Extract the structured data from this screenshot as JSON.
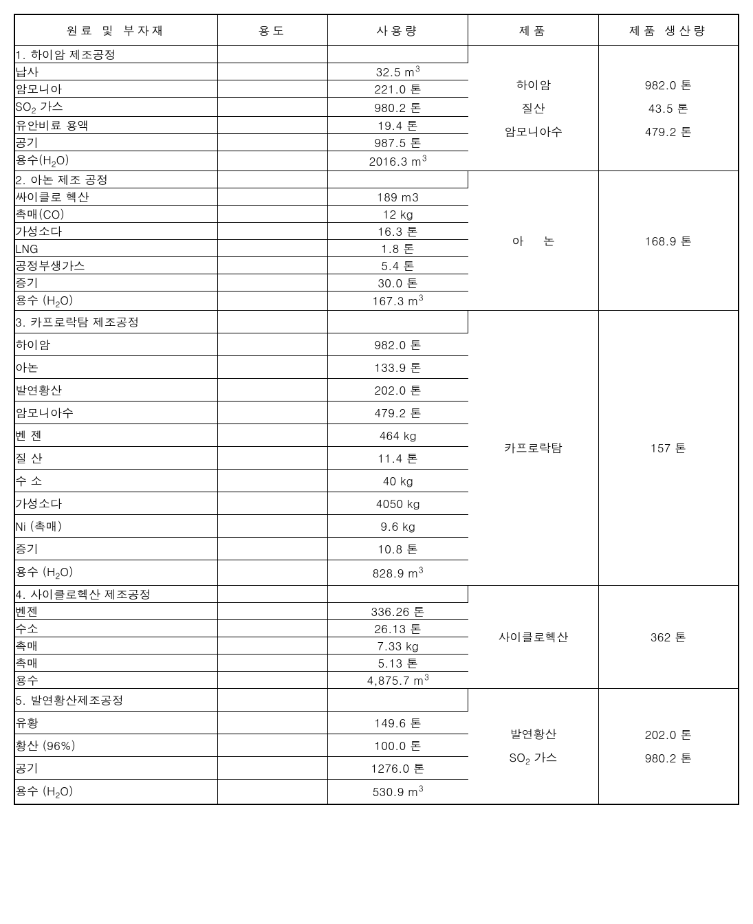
{
  "columns": {
    "material": "원료  및  부자재",
    "use": "용도",
    "amount": "사용량",
    "product": "제품",
    "output": "제품  생산량"
  },
  "sections": [
    {
      "title": "1.  하이암 제조공정",
      "tight": false,
      "rows": [
        {
          "material": "납사",
          "amount_html": "32.5 m<sup>3</sup>"
        },
        {
          "material": "암모니아",
          "amount_html": "221.0 톤"
        },
        {
          "material_html": "SO<sub>2</sub> 가스",
          "amount_html": "980.2 톤"
        },
        {
          "material": "유안비료 용액",
          "amount_html": "19.4 톤"
        },
        {
          "material": "공기",
          "amount_html": "987.5 톤"
        },
        {
          "material_html": "용수(H<sub>2</sub>O)",
          "amount_html": "2016.3 m<sup>3</sup>"
        }
      ],
      "products_html": [
        "하이암",
        "질산",
        "암모니아수"
      ],
      "outputs_html": [
        "982.0 톤",
        "43.5 톤",
        "479.2 톤"
      ]
    },
    {
      "title": "2.  아논 제조 공정",
      "tight": false,
      "title_indent": true,
      "rows": [
        {
          "material": "싸이클로 헥산",
          "amount_html": "189 m3"
        },
        {
          "material": "촉매(CO)",
          "amount_html": "12 kg"
        },
        {
          "material": "가성소다",
          "amount_html": "16.3 톤"
        },
        {
          "material": "LNG",
          "amount_html": "1.8 톤"
        },
        {
          "material": "공정부생가스",
          "amount_html": "5.4 톤"
        },
        {
          "material": "증기",
          "amount_html": "30.0 톤"
        },
        {
          "material_html": "용수 (H<sub>2</sub>O)",
          "amount_html": "167.3 m<sup>3</sup>"
        }
      ],
      "products_html": [
        "아&nbsp;&nbsp;&nbsp;&nbsp;&nbsp;논"
      ],
      "outputs_html": [
        "168.9 톤"
      ]
    },
    {
      "title": "3.  카프로락탐 제조공정",
      "tight": true,
      "rows": [
        {
          "material": "하이암",
          "amount_html": "982.0 톤"
        },
        {
          "material": "아논",
          "amount_html": "133.9 톤"
        },
        {
          "material": "발연황산",
          "amount_html": "202.0 톤"
        },
        {
          "material": "암모니아수",
          "amount_html": "479.2 톤"
        },
        {
          "material": "벤 젠",
          "amount_html": "464 kg"
        },
        {
          "material": "질 산",
          "amount_html": "11.4 톤"
        },
        {
          "material": "수 소",
          "amount_html": "40 kg"
        },
        {
          "material": "가성소다",
          "amount_html": "4050 kg"
        },
        {
          "material": "Ni (촉매)",
          "amount_html": "9.6 kg"
        },
        {
          "material": "증기",
          "amount_html": "10.8 톤"
        },
        {
          "material_html": "용수 (H<sub>2</sub>O)",
          "amount_html": "828.9 m<sup>3</sup>"
        }
      ],
      "products_html": [
        "카프로락탐"
      ],
      "outputs_html": [
        "157 톤"
      ]
    },
    {
      "title": "4.  사이클로헥산 제조공정",
      "tight": false,
      "rows": [
        {
          "material": "벤젠",
          "amount_html": "336.26 톤"
        },
        {
          "material": "수소",
          "amount_html": "26.13 톤"
        },
        {
          "material": "촉매",
          "amount_html": "7.33 kg"
        },
        {
          "material": "촉매",
          "amount_html": "5.13 톤"
        },
        {
          "material": "용수",
          "amount_html": "4,875.7 m<sup>3</sup>"
        }
      ],
      "products_html": [
        "사이클로헥산"
      ],
      "outputs_html": [
        "362 톤"
      ]
    },
    {
      "title": "5.  발연황산제조공정",
      "tight": true,
      "rows": [
        {
          "material": "유황",
          "amount_html": "149.6 톤"
        },
        {
          "material": "황산 (96%)",
          "amount_html": "100.0 톤"
        },
        {
          "material": "공기",
          "amount_html": "1276.0 톤"
        },
        {
          "material_html": "용수 (H<sub>2</sub>O)",
          "amount_html": "530.9 m<sup>3</sup>"
        }
      ],
      "products_html": [
        "발연황산",
        "SO<sub>2</sub> 가스"
      ],
      "outputs_html": [
        "202.0 톤",
        "980.2 톤"
      ]
    }
  ]
}
